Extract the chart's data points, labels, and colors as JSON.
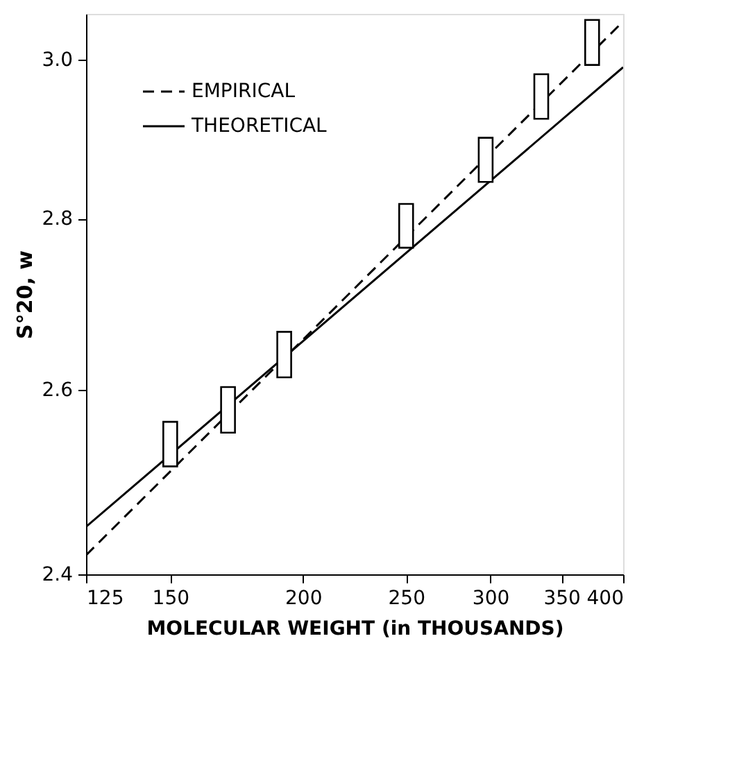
{
  "chart_data": {
    "type": "line",
    "xlabel": "MOLECULAR WEIGHT (in THOUSANDS)",
    "ylabel": "S°20, w",
    "log": "xy",
    "xlim": [
      125,
      400
    ],
    "xticks": [
      125,
      150,
      200,
      250,
      300,
      350,
      400
    ],
    "ylim": [
      2.4,
      3.06
    ],
    "yticks": [
      {
        "value": 2.4,
        "label": "2.4"
      },
      {
        "value": 2.6,
        "label": "2.6"
      },
      {
        "value": 2.8,
        "label": "2.8"
      },
      {
        "value": 3.0,
        "label": "3.0"
      }
    ],
    "grid": false,
    "legend": "top left",
    "series": [
      {
        "name": "EMPIRICAL",
        "line_style": "dashed",
        "color": "#000000",
        "x": [
          125,
          400
        ],
        "values": [
          2.42,
          3.05
        ]
      },
      {
        "name": "THEORETICAL",
        "line_style": "solid",
        "color": "#000000",
        "x": [
          125,
          400
        ],
        "values": [
          2.45,
          2.99
        ]
      },
      {
        "type": "bar",
        "color": "#ffffff",
        "x": [
          150,
          170,
          192,
          250,
          297,
          335,
          374
        ],
        "base": [
          2.515,
          2.552,
          2.614,
          2.765,
          2.845,
          2.924,
          2.993
        ],
        "values": [
          0.049,
          0.051,
          0.052,
          0.053,
          0.055,
          0.057,
          0.059
        ]
      }
    ]
  }
}
